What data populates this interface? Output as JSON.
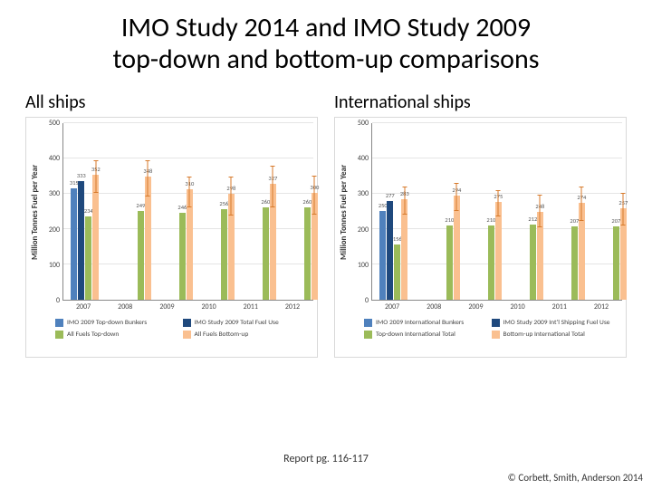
{
  "title_line1": "IMO Study 2014 and IMO Study 2009",
  "title_line2": "top-down and bottom-up comparisons",
  "footer_center": "Report pg. 116-117",
  "footer_right": "© Corbett, Smith, Anderson 2014",
  "colors": {
    "series1": "#4f81bd",
    "series2": "#1f497d",
    "series3": "#9bbb59",
    "series4": "#fac090",
    "grid": "#e5e5e5",
    "axis": "#888888",
    "error": "#d77a2b"
  },
  "ylabel": "Million Tonnes Fuel per Year",
  "label_fontsize": 9,
  "tick_fontsize": 8,
  "ymax": 500,
  "ytick_step": 100,
  "yticks": [
    0,
    100,
    200,
    300,
    400,
    500
  ],
  "categories": [
    "2007",
    "2008",
    "2009",
    "2010",
    "2011",
    "2012"
  ],
  "left": {
    "subtitle": "All ships",
    "legend": [
      "IMO 2009 Top-down Bunkers",
      "IMO Study 2009 Total Fuel Use",
      "All Fuels Top-down",
      "All Fuels Bottom-up"
    ],
    "groups": [
      {
        "s1": 315,
        "s2": 333,
        "s3": 234,
        "s4": 352,
        "s4err": [
          300,
          392
        ],
        "pack": 3
      },
      {
        "s3": 249,
        "s4": 348,
        "s4err": [
          292,
          392
        ],
        "pack": 13
      },
      {
        "s3": 246,
        "s4": 310,
        "s4err": [
          260,
          348
        ],
        "pack": 13
      },
      {
        "s3": 256,
        "s4": 298,
        "s4err": [
          238,
          348
        ],
        "pack": 13
      },
      {
        "s3": 260,
        "s4": 327,
        "s4err": [
          260,
          378
        ],
        "pack": 13
      },
      {
        "s3": 260,
        "s4": 300,
        "s4err": [
          240,
          350
        ],
        "pack": 13
      }
    ]
  },
  "right": {
    "subtitle": "International ships",
    "legend": [
      "IMO 2009 International Bunkers",
      "IMO Study 2009 Int'l Shipping Fuel Use",
      "Top-down International Total",
      "Bottom-up International Total"
    ],
    "groups": [
      {
        "s1": 250,
        "s2": 277,
        "s3": 156,
        "s4": 283,
        "s4err": [
          240,
          320
        ],
        "pack": 3
      },
      {
        "s3": 210,
        "s4": 294,
        "s4err": [
          250,
          328
        ],
        "pack": 13
      },
      {
        "s3": 210,
        "s4": 275,
        "s4err": [
          234,
          308
        ],
        "pack": 13
      },
      {
        "s3": 212,
        "s4": 248,
        "s4err": [
          204,
          295
        ],
        "pack": 13
      },
      {
        "s3": 207,
        "s4": 274,
        "s4err": [
          222,
          318
        ],
        "pack": 13
      },
      {
        "s3": 207,
        "s4": 257,
        "s4err": [
          210,
          300
        ],
        "pack": 13
      }
    ]
  }
}
